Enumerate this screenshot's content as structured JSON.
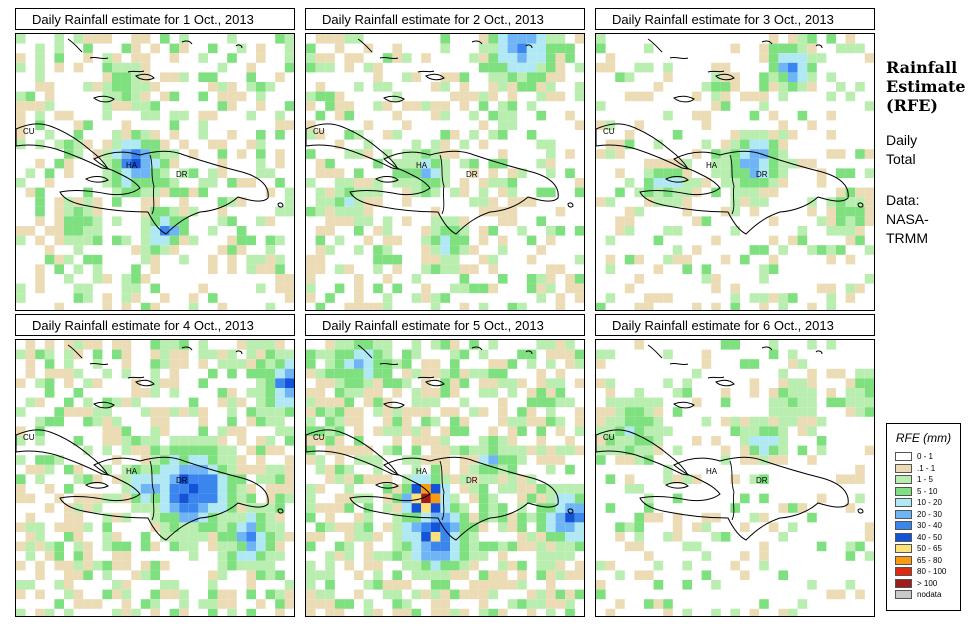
{
  "panels": [
    {
      "title": "Daily Rainfall estimate for  1 Oct., 2013"
    },
    {
      "title": "Daily Rainfall estimate for  2 Oct., 2013"
    },
    {
      "title": "Daily Rainfall estimate for  3 Oct., 2013"
    },
    {
      "title": "Daily Rainfall estimate for  4 Oct., 2013"
    },
    {
      "title": "Daily Rainfall estimate for  5 Oct., 2013"
    },
    {
      "title": "Daily Rainfall estimate for  6 Oct., 2013"
    }
  ],
  "map_labels": {
    "cuba": "CU",
    "haiti": "HA",
    "dominican_republic": "DR"
  },
  "sidebar": {
    "title_line1": "Rainfall",
    "title_line2": "Estimate",
    "title_line3": "(RFE)",
    "subtitle_line1": "Daily",
    "subtitle_line2": "Total",
    "source_line1": "Data:",
    "source_line2": "NASA-",
    "source_line3": "TRMM"
  },
  "legend": {
    "title": "RFE (mm)",
    "items": [
      {
        "label": "0 - 1",
        "color": "#ffffff"
      },
      {
        "label": ".1 - 1",
        "color": "#ecdcb6"
      },
      {
        "label": "1 - 5",
        "color": "#b9eeb0"
      },
      {
        "label": "5 - 10",
        "color": "#7fe07f"
      },
      {
        "label": "10 - 20",
        "color": "#b0e8f4"
      },
      {
        "label": "20 - 30",
        "color": "#6fb4f4"
      },
      {
        "label": "30 - 40",
        "color": "#3a86ee"
      },
      {
        "label": "40 - 50",
        "color": "#1452d8"
      },
      {
        "label": "50 - 65",
        "color": "#fce27a"
      },
      {
        "label": "65 - 80",
        "color": "#f99a10"
      },
      {
        "label": "80 - 100",
        "color": "#e02a10"
      },
      {
        "label": "> 100",
        "color": "#9e1c1c"
      },
      {
        "label": "nodata",
        "color": "#c8c8c8"
      }
    ]
  }
}
